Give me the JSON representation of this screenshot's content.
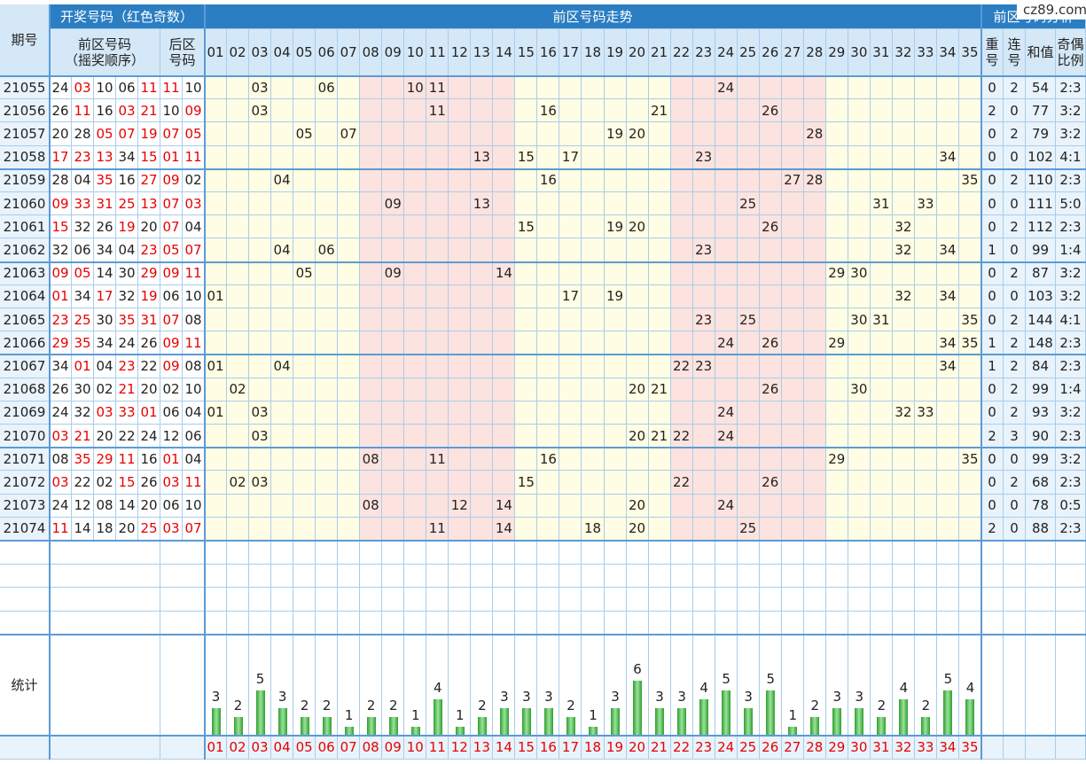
{
  "header": {
    "issue": "期号",
    "draw": "开奖号码（红色奇数）",
    "trend": "前区号码走势",
    "analysis": "前区号码分析",
    "front_lines": [
      "前区号码",
      "（摇奖顺序）"
    ],
    "back_lines": [
      "后区",
      "号码"
    ],
    "repeat": "重号",
    "consecutive": "连号",
    "sum": "和值",
    "odd_even": "奇偶比例"
  },
  "numbers": [
    "01",
    "02",
    "03",
    "04",
    "05",
    "06",
    "07",
    "08",
    "09",
    "10",
    "11",
    "12",
    "13",
    "14",
    "15",
    "16",
    "17",
    "18",
    "19",
    "20",
    "21",
    "22",
    "23",
    "24",
    "25",
    "26",
    "27",
    "28",
    "29",
    "30",
    "31",
    "32",
    "33",
    "34",
    "35"
  ],
  "rows": [
    {
      "issue": "21055",
      "front": [
        "24",
        "03",
        "10",
        "06",
        "11"
      ],
      "back": [
        "11",
        "10"
      ],
      "repeat": 0,
      "consecutive": 2,
      "sum": 54,
      "ratio": "2:3"
    },
    {
      "issue": "21056",
      "front": [
        "26",
        "11",
        "16",
        "03",
        "21"
      ],
      "back": [
        "10",
        "09"
      ],
      "repeat": 2,
      "consecutive": 0,
      "sum": 77,
      "ratio": "3:2"
    },
    {
      "issue": "21057",
      "front": [
        "20",
        "28",
        "05",
        "07",
        "19"
      ],
      "back": [
        "07",
        "05"
      ],
      "repeat": 0,
      "consecutive": 2,
      "sum": 79,
      "ratio": "3:2"
    },
    {
      "issue": "21058",
      "front": [
        "17",
        "23",
        "13",
        "34",
        "15"
      ],
      "back": [
        "01",
        "11"
      ],
      "repeat": 0,
      "consecutive": 0,
      "sum": 102,
      "ratio": "4:1"
    },
    {
      "issue": "21059",
      "front": [
        "28",
        "04",
        "35",
        "16",
        "27"
      ],
      "back": [
        "09",
        "02"
      ],
      "repeat": 0,
      "consecutive": 2,
      "sum": 110,
      "ratio": "2:3"
    },
    {
      "issue": "21060",
      "front": [
        "09",
        "33",
        "31",
        "25",
        "13"
      ],
      "back": [
        "07",
        "03"
      ],
      "repeat": 0,
      "consecutive": 0,
      "sum": 111,
      "ratio": "5:0"
    },
    {
      "issue": "21061",
      "front": [
        "15",
        "32",
        "26",
        "19",
        "20"
      ],
      "back": [
        "07",
        "04"
      ],
      "repeat": 0,
      "consecutive": 2,
      "sum": 112,
      "ratio": "2:3"
    },
    {
      "issue": "21062",
      "front": [
        "32",
        "06",
        "34",
        "04",
        "23"
      ],
      "back": [
        "05",
        "07"
      ],
      "repeat": 1,
      "consecutive": 0,
      "sum": 99,
      "ratio": "1:4"
    },
    {
      "issue": "21063",
      "front": [
        "09",
        "05",
        "14",
        "30",
        "29"
      ],
      "back": [
        "09",
        "11"
      ],
      "repeat": 0,
      "consecutive": 2,
      "sum": 87,
      "ratio": "3:2"
    },
    {
      "issue": "21064",
      "front": [
        "01",
        "34",
        "17",
        "32",
        "19"
      ],
      "back": [
        "06",
        "10"
      ],
      "repeat": 0,
      "consecutive": 0,
      "sum": 103,
      "ratio": "3:2"
    },
    {
      "issue": "21065",
      "front": [
        "23",
        "25",
        "30",
        "35",
        "31"
      ],
      "back": [
        "07",
        "08"
      ],
      "repeat": 0,
      "consecutive": 2,
      "sum": 144,
      "ratio": "4:1"
    },
    {
      "issue": "21066",
      "front": [
        "29",
        "35",
        "34",
        "24",
        "26"
      ],
      "back": [
        "09",
        "11"
      ],
      "repeat": 1,
      "consecutive": 2,
      "sum": 148,
      "ratio": "2:3"
    },
    {
      "issue": "21067",
      "front": [
        "34",
        "01",
        "04",
        "23",
        "22"
      ],
      "back": [
        "09",
        "08"
      ],
      "repeat": 1,
      "consecutive": 2,
      "sum": 84,
      "ratio": "2:3"
    },
    {
      "issue": "21068",
      "front": [
        "26",
        "30",
        "02",
        "21",
        "20"
      ],
      "back": [
        "02",
        "10"
      ],
      "repeat": 0,
      "consecutive": 2,
      "sum": 99,
      "ratio": "1:4"
    },
    {
      "issue": "21069",
      "front": [
        "24",
        "32",
        "03",
        "33",
        "01"
      ],
      "back": [
        "06",
        "04"
      ],
      "repeat": 0,
      "consecutive": 2,
      "sum": 93,
      "ratio": "3:2"
    },
    {
      "issue": "21070",
      "front": [
        "03",
        "21",
        "20",
        "22",
        "24"
      ],
      "back": [
        "12",
        "06"
      ],
      "repeat": 2,
      "consecutive": 3,
      "sum": 90,
      "ratio": "2:3"
    },
    {
      "issue": "21071",
      "front": [
        "08",
        "35",
        "29",
        "11",
        "16"
      ],
      "back": [
        "01",
        "04"
      ],
      "repeat": 0,
      "consecutive": 0,
      "sum": 99,
      "ratio": "3:2"
    },
    {
      "issue": "21072",
      "front": [
        "03",
        "22",
        "02",
        "15",
        "26"
      ],
      "back": [
        "03",
        "11"
      ],
      "repeat": 0,
      "consecutive": 2,
      "sum": 68,
      "ratio": "2:3"
    },
    {
      "issue": "21073",
      "front": [
        "24",
        "12",
        "08",
        "14",
        "20"
      ],
      "back": [
        "06",
        "10"
      ],
      "repeat": 0,
      "consecutive": 0,
      "sum": 78,
      "ratio": "0:5"
    },
    {
      "issue": "21074",
      "front": [
        "11",
        "14",
        "18",
        "20",
        "25"
      ],
      "back": [
        "03",
        "07"
      ],
      "repeat": 2,
      "consecutive": 0,
      "sum": 88,
      "ratio": "2:3"
    }
  ],
  "stats": {
    "label": "统计",
    "counts": [
      3,
      2,
      5,
      3,
      2,
      2,
      1,
      2,
      2,
      1,
      4,
      1,
      2,
      3,
      3,
      3,
      2,
      1,
      3,
      6,
      3,
      3,
      4,
      5,
      3,
      5,
      1,
      2,
      3,
      3,
      2,
      4,
      2,
      5,
      4
    ]
  },
  "logo": "cz89.com"
}
